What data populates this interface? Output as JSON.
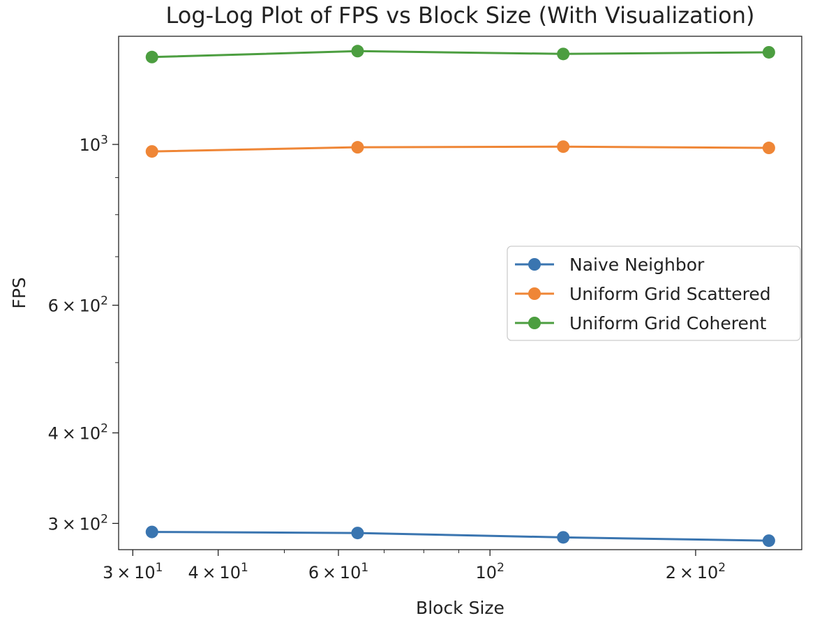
{
  "chart_data": {
    "type": "line",
    "title": "Log-Log Plot of FPS vs Block Size (With Visualization)",
    "xlabel": "Block Size",
    "ylabel": "FPS",
    "xscale": "log",
    "yscale": "log",
    "x": [
      32,
      64,
      128,
      256
    ],
    "xlim": [
      28.6,
      286
    ],
    "ylim": [
      276,
      1410
    ],
    "series": [
      {
        "name": "Naive Neighbor",
        "color": "#3a75b0",
        "values": [
          292,
          291,
          287,
          284
        ]
      },
      {
        "name": "Uniform Grid Scattered",
        "color": "#ef8636",
        "values": [
          978,
          991,
          993,
          989
        ]
      },
      {
        "name": "Uniform Grid Coherent",
        "color": "#4c9e40",
        "values": [
          1320,
          1345,
          1333,
          1340
        ]
      }
    ],
    "x_ticks": [
      {
        "value": 30,
        "mantissa": "3",
        "exp": "1",
        "style": "sci"
      },
      {
        "value": 40,
        "mantissa": "4",
        "exp": "1",
        "style": "sci"
      },
      {
        "value": 60,
        "mantissa": "6",
        "exp": "1",
        "style": "sci"
      },
      {
        "value": 100,
        "mantissa": "",
        "exp": "2",
        "style": "pow"
      },
      {
        "value": 200,
        "mantissa": "2",
        "exp": "2",
        "style": "sci"
      }
    ],
    "x_minor_ticks": [
      50,
      70,
      80,
      90
    ],
    "y_ticks": [
      {
        "value": 300,
        "mantissa": "3",
        "exp": "2",
        "style": "sci"
      },
      {
        "value": 400,
        "mantissa": "4",
        "exp": "2",
        "style": "sci"
      },
      {
        "value": 600,
        "mantissa": "6",
        "exp": "2",
        "style": "sci"
      },
      {
        "value": 1000,
        "mantissa": "",
        "exp": "3",
        "style": "pow"
      }
    ],
    "y_minor_ticks": [
      500,
      700,
      800,
      900
    ],
    "grid": false,
    "legend_position": "center-right"
  }
}
